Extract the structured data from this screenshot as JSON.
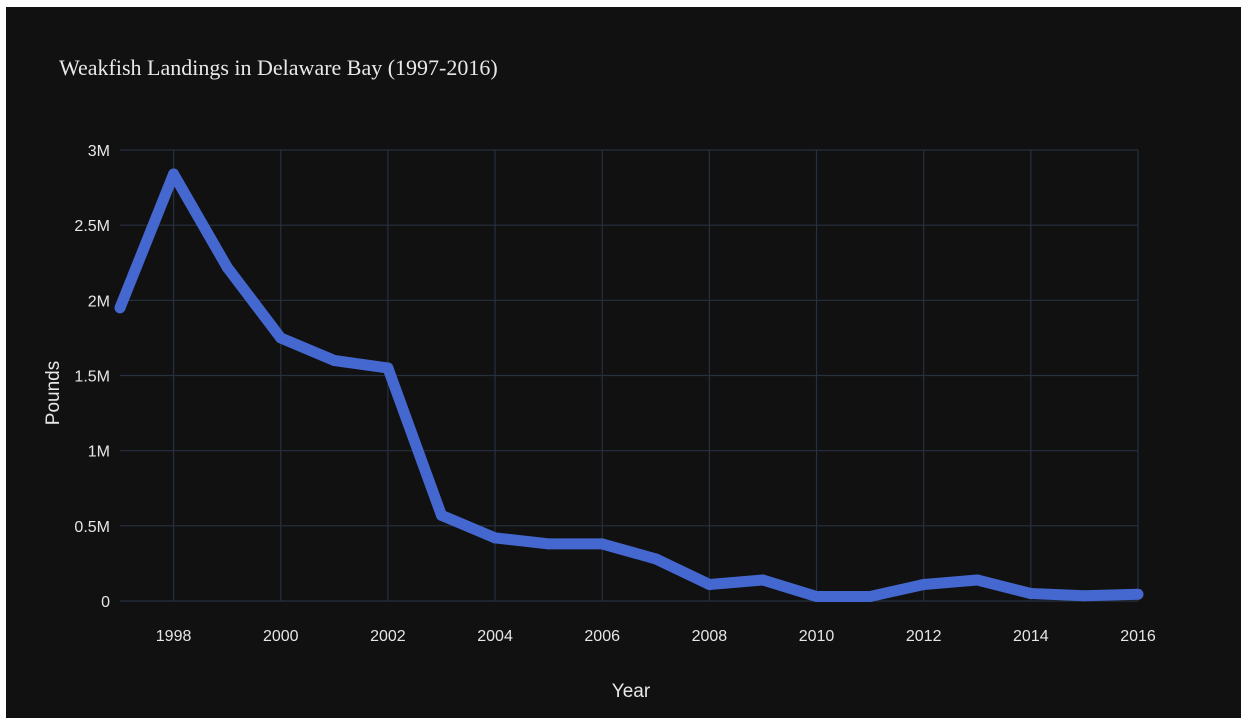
{
  "chart_data": {
    "type": "line",
    "title": "Weakfish Landings in Delaware Bay (1997-2016)",
    "xlabel": "Year",
    "ylabel": "Pounds",
    "x": [
      1997,
      1998,
      1999,
      2000,
      2001,
      2002,
      2003,
      2004,
      2005,
      2006,
      2007,
      2008,
      2009,
      2010,
      2011,
      2012,
      2013,
      2014,
      2015,
      2016
    ],
    "series": [
      {
        "values": [
          1950000,
          2840000,
          2220000,
          1750000,
          1600000,
          1550000,
          570000,
          420000,
          380000,
          380000,
          280000,
          110000,
          140000,
          30000,
          30000,
          110000,
          140000,
          50000,
          35000,
          45000
        ],
        "color": "#4468d0"
      }
    ],
    "xlim": [
      1997,
      2016
    ],
    "ylim": [
      0,
      3000000
    ],
    "x_ticks": [
      1998,
      2000,
      2002,
      2004,
      2006,
      2008,
      2010,
      2012,
      2014,
      2016
    ],
    "x_tick_labels": [
      "1998",
      "2000",
      "2002",
      "2004",
      "2006",
      "2008",
      "2010",
      "2012",
      "2014",
      "2016"
    ],
    "y_ticks": [
      0,
      500000,
      1000000,
      1500000,
      2000000,
      2500000,
      3000000
    ],
    "y_tick_labels": [
      "0",
      "0.5M",
      "1M",
      "1.5M",
      "2M",
      "2.5M",
      "3M"
    ],
    "grid": true,
    "legend": "none",
    "colors": {
      "background": "#111111",
      "grid": "#26303f",
      "line": "#4468d0",
      "text": "#e6e6e6"
    }
  }
}
